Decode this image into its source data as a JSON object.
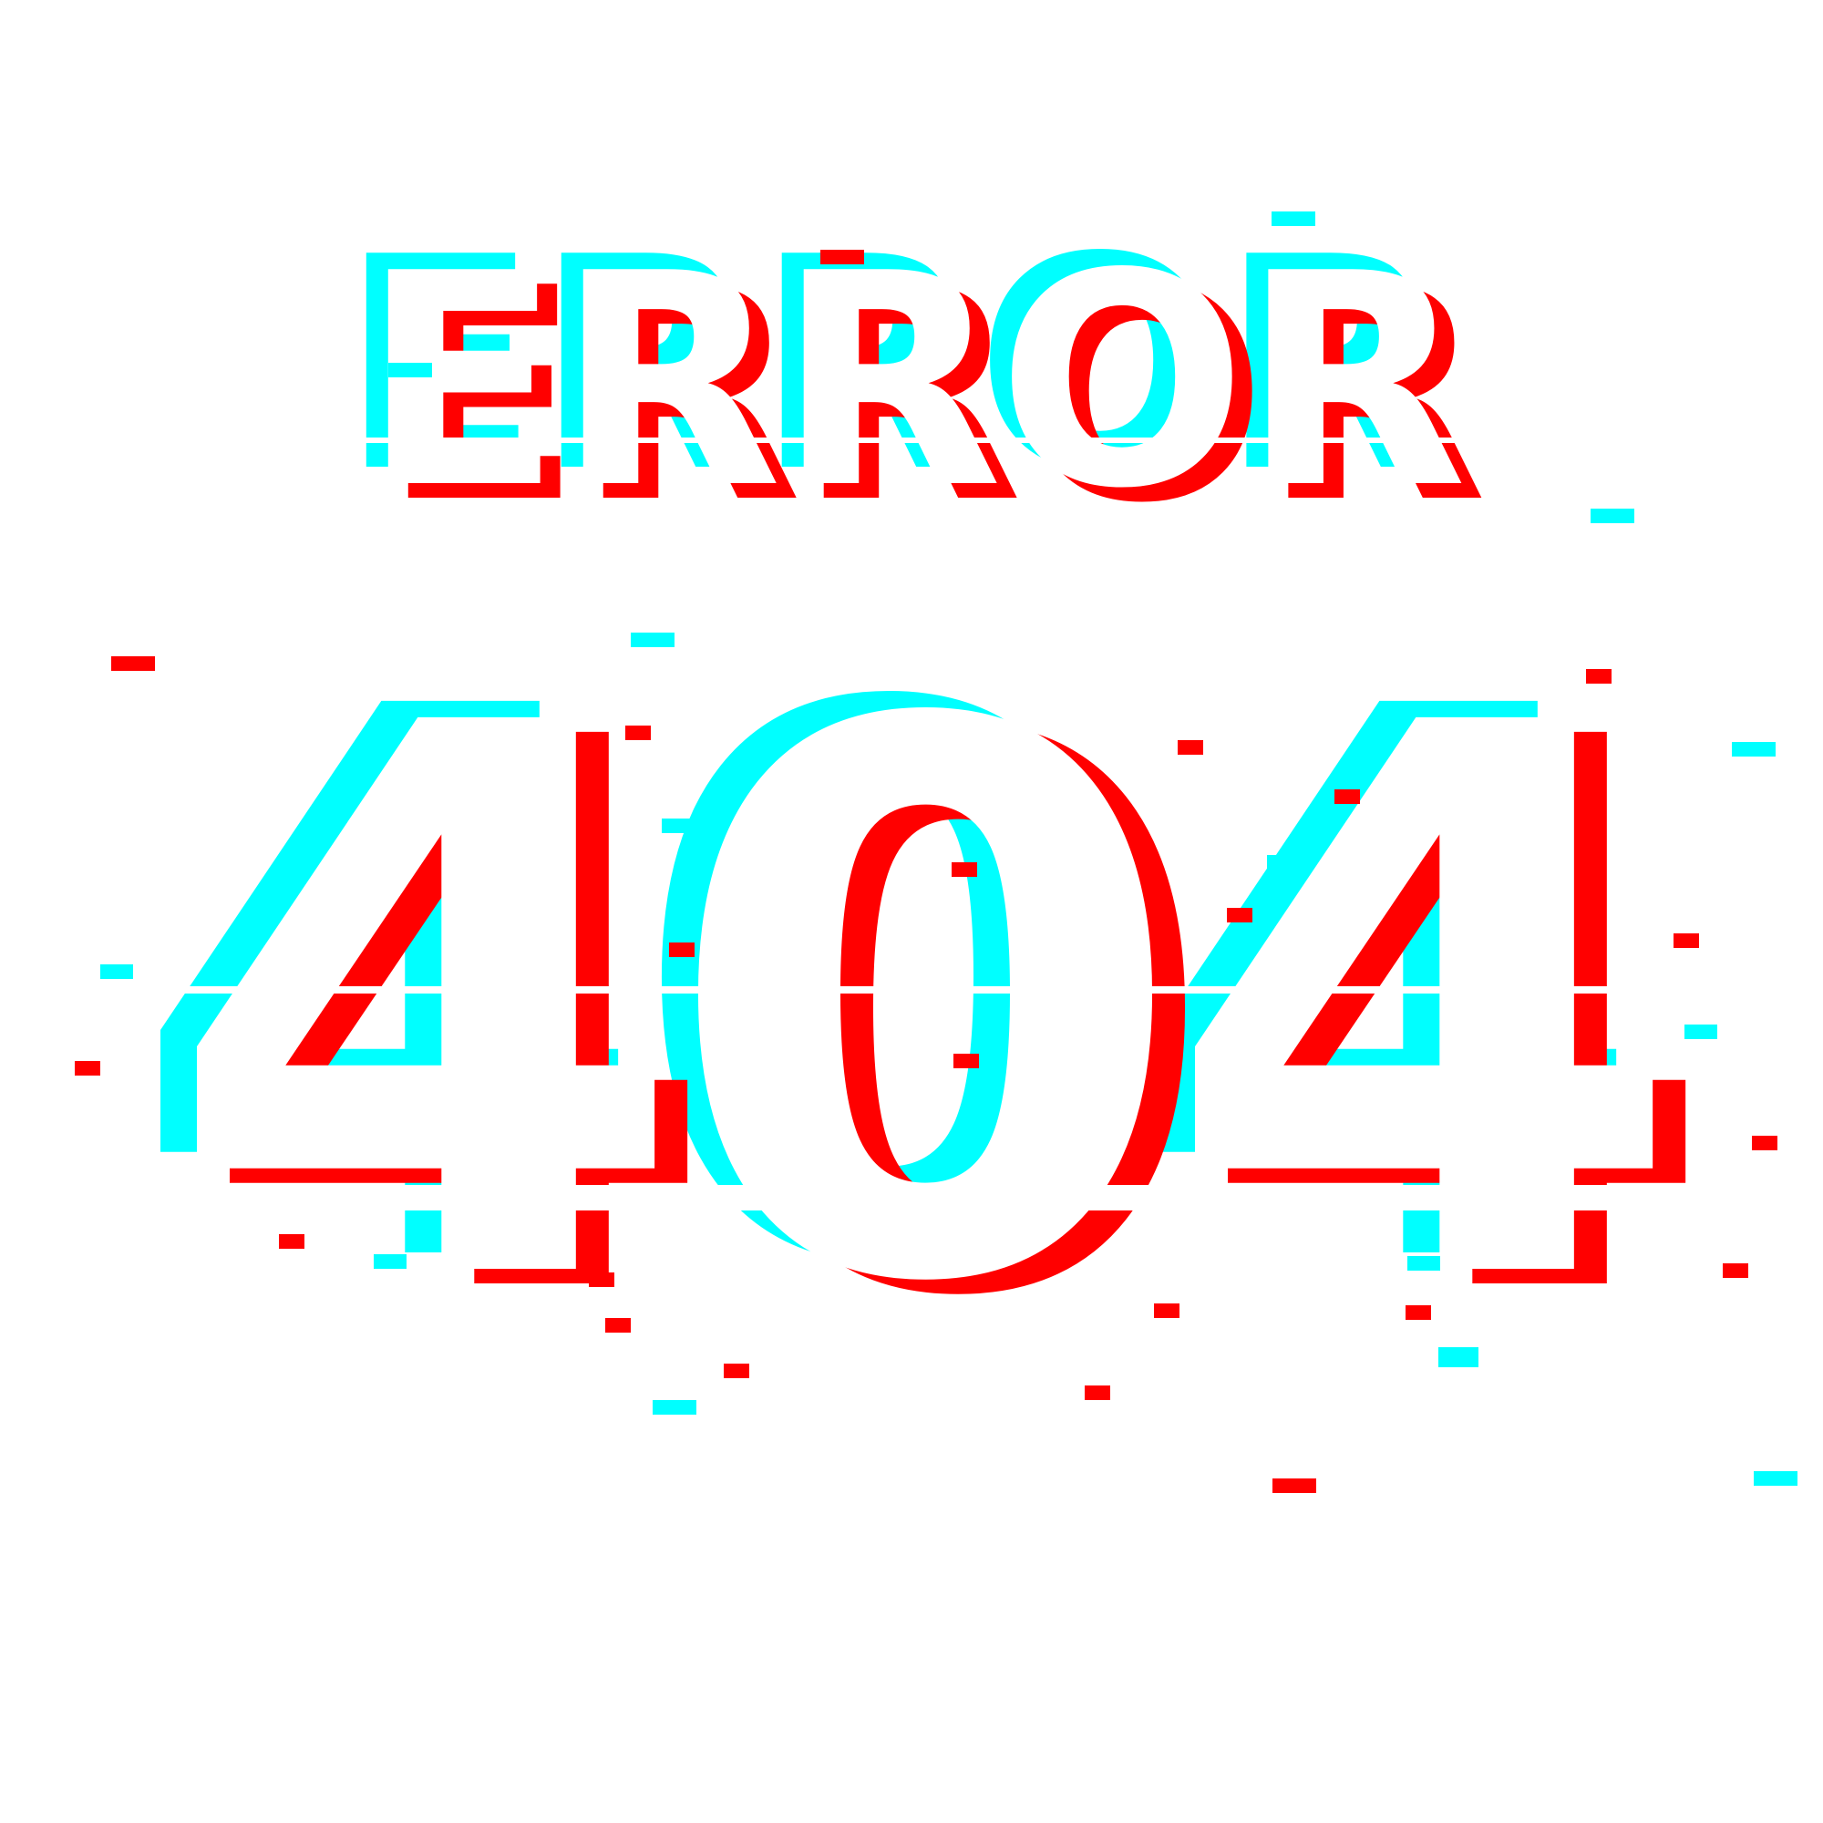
{
  "heading": {
    "word": "ERROR",
    "code": "404"
  },
  "colors": {
    "background": "#ffffff",
    "text": "#ffffff",
    "glitch_cyan": "#00ffff",
    "glitch_red": "#ff0000"
  }
}
